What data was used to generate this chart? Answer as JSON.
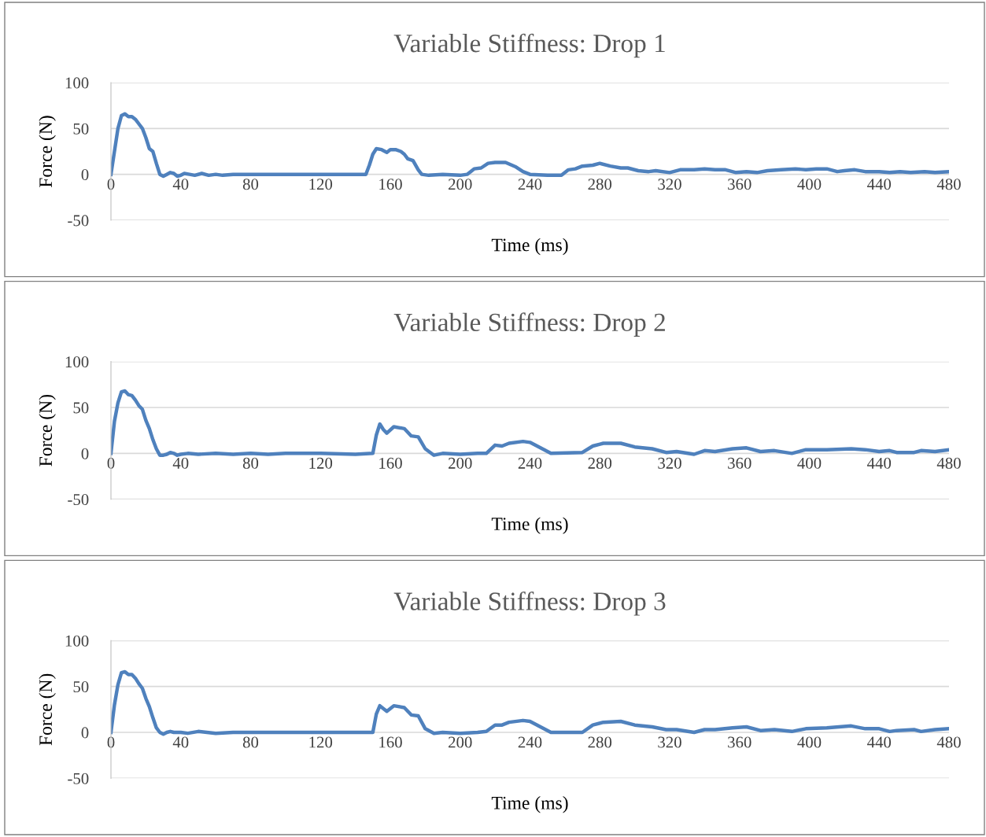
{
  "chart_data": [
    {
      "type": "line",
      "title": "Variable Stiffness: Drop 1",
      "xlabel": "Time (ms)",
      "ylabel": "Force (N)",
      "xlim": [
        0,
        480
      ],
      "ylim": [
        -50,
        100
      ],
      "xticks": [
        0,
        40,
        80,
        120,
        160,
        200,
        240,
        280,
        320,
        360,
        400,
        440,
        480
      ],
      "yticks": [
        -50,
        0,
        50,
        100
      ],
      "grid": "y",
      "legend": false,
      "series": [
        {
          "color": "#4f81bd",
          "x": [
            0,
            2,
            4,
            6,
            8,
            10,
            12,
            14,
            16,
            18,
            20,
            22,
            24,
            26,
            28,
            30,
            32,
            34,
            36,
            38,
            40,
            42,
            45,
            48,
            52,
            56,
            60,
            64,
            70,
            80,
            90,
            100,
            120,
            140,
            146,
            148,
            150,
            152,
            155,
            158,
            160,
            163,
            166,
            168,
            170,
            173,
            176,
            178,
            182,
            190,
            200,
            204,
            208,
            212,
            216,
            220,
            226,
            232,
            236,
            240,
            250,
            258,
            262,
            266,
            270,
            276,
            280,
            286,
            292,
            296,
            302,
            308,
            312,
            320,
            326,
            334,
            340,
            346,
            352,
            358,
            364,
            370,
            376,
            384,
            392,
            398,
            404,
            410,
            416,
            420,
            426,
            432,
            440,
            446,
            452,
            458,
            466,
            472,
            480
          ],
          "values": [
            0,
            25,
            50,
            64,
            66,
            63,
            63,
            60,
            55,
            50,
            40,
            28,
            25,
            12,
            0,
            -2,
            0,
            2,
            1,
            -2,
            -1,
            1,
            0,
            -1,
            1,
            -1,
            0,
            -1,
            0,
            0,
            0,
            0,
            0,
            0,
            0,
            10,
            22,
            28,
            27,
            24,
            27,
            27,
            25,
            22,
            17,
            15,
            5,
            0,
            -1,
            0,
            -1,
            0,
            6,
            7,
            12,
            13,
            13,
            8,
            3,
            0,
            -1,
            -1,
            5,
            6,
            9,
            10,
            12,
            9,
            7,
            7,
            4,
            3,
            4,
            2,
            5,
            5,
            6,
            5,
            5,
            2,
            3,
            2,
            4,
            5,
            6,
            5,
            6,
            6,
            3,
            4,
            5,
            3,
            3,
            2,
            3,
            2,
            3,
            2,
            3
          ]
        }
      ]
    },
    {
      "type": "line",
      "title": "Variable Stiffness: Drop 2",
      "xlabel": "Time (ms)",
      "ylabel": "Force (N)",
      "xlim": [
        0,
        480
      ],
      "ylim": [
        -50,
        100
      ],
      "xticks": [
        0,
        40,
        80,
        120,
        160,
        200,
        240,
        280,
        320,
        360,
        400,
        440,
        480
      ],
      "yticks": [
        -50,
        0,
        50,
        100
      ],
      "grid": "y",
      "legend": false,
      "series": [
        {
          "color": "#4f81bd",
          "x": [
            0,
            2,
            4,
            6,
            8,
            10,
            12,
            14,
            16,
            18,
            20,
            22,
            24,
            26,
            28,
            30,
            32,
            34,
            36,
            38,
            40,
            44,
            50,
            60,
            70,
            80,
            90,
            100,
            120,
            140,
            150,
            152,
            154,
            156,
            158,
            162,
            168,
            172,
            176,
            180,
            185,
            190,
            200,
            210,
            215,
            220,
            224,
            228,
            236,
            240,
            252,
            270,
            276,
            282,
            292,
            300,
            310,
            318,
            324,
            334,
            340,
            346,
            356,
            364,
            372,
            380,
            390,
            398,
            410,
            424,
            432,
            440,
            446,
            450,
            460,
            464,
            472,
            480
          ],
          "values": [
            0,
            35,
            55,
            67,
            68,
            64,
            63,
            58,
            52,
            48,
            36,
            27,
            15,
            5,
            -2,
            -2,
            -1,
            1,
            0,
            -2,
            -1,
            0,
            -1,
            0,
            -1,
            0,
            -1,
            0,
            0,
            -1,
            0,
            20,
            32,
            26,
            22,
            29,
            27,
            19,
            18,
            5,
            -2,
            0,
            -1,
            0,
            0,
            9,
            8,
            11,
            13,
            12,
            0,
            1,
            8,
            11,
            11,
            7,
            5,
            1,
            2,
            -1,
            3,
            2,
            5,
            6,
            2,
            3,
            0,
            4,
            4,
            5,
            4,
            2,
            3,
            1,
            1,
            3,
            2,
            4
          ]
        }
      ]
    },
    {
      "type": "line",
      "title": "Variable Stiffness: Drop 3",
      "xlabel": "Time (ms)",
      "ylabel": "Force (N)",
      "xlim": [
        0,
        480
      ],
      "ylim": [
        -50,
        100
      ],
      "xticks": [
        0,
        40,
        80,
        120,
        160,
        200,
        240,
        280,
        320,
        360,
        400,
        440,
        480
      ],
      "yticks": [
        -50,
        0,
        50,
        100
      ],
      "grid": "y",
      "legend": false,
      "series": [
        {
          "color": "#4f81bd",
          "x": [
            0,
            2,
            4,
            6,
            8,
            10,
            12,
            14,
            16,
            18,
            20,
            22,
            24,
            26,
            28,
            30,
            32,
            34,
            36,
            40,
            44,
            50,
            60,
            70,
            80,
            90,
            100,
            120,
            140,
            150,
            152,
            154,
            156,
            158,
            162,
            168,
            172,
            176,
            180,
            185,
            190,
            200,
            210,
            215,
            220,
            224,
            228,
            236,
            240,
            252,
            270,
            276,
            282,
            292,
            300,
            310,
            318,
            324,
            334,
            340,
            346,
            356,
            364,
            372,
            380,
            390,
            398,
            410,
            424,
            432,
            440,
            446,
            450,
            460,
            464,
            472,
            480
          ],
          "values": [
            0,
            30,
            52,
            65,
            66,
            63,
            63,
            59,
            53,
            48,
            37,
            28,
            16,
            5,
            0,
            -2,
            0,
            1,
            0,
            0,
            -1,
            1,
            -1,
            0,
            0,
            0,
            0,
            0,
            0,
            0,
            20,
            29,
            26,
            23,
            29,
            27,
            19,
            18,
            4,
            -1,
            0,
            -1,
            0,
            1,
            8,
            8,
            11,
            13,
            12,
            0,
            0,
            8,
            11,
            12,
            8,
            6,
            3,
            3,
            0,
            3,
            3,
            5,
            6,
            2,
            3,
            1,
            4,
            5,
            7,
            4,
            4,
            1,
            2,
            3,
            1,
            3,
            4
          ]
        }
      ]
    }
  ]
}
